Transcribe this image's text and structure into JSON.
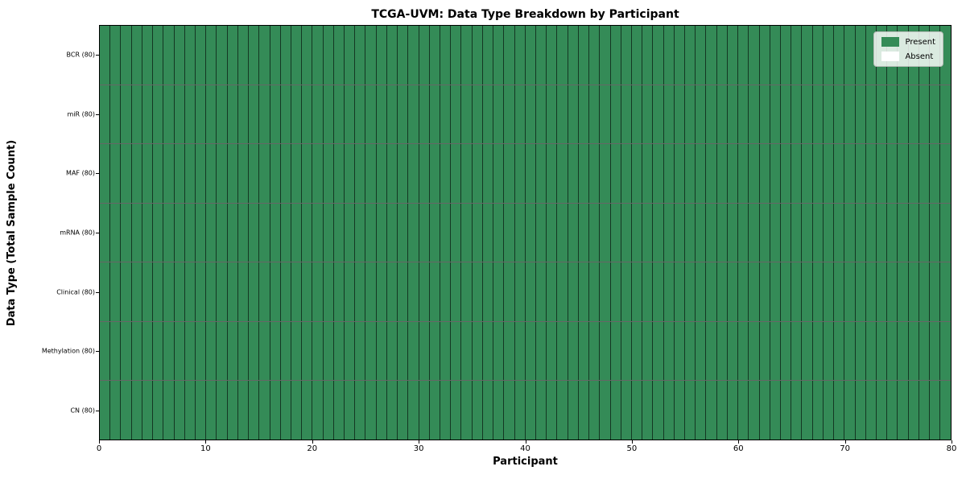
{
  "chart_data": {
    "type": "heatmap",
    "title": "TCGA-UVM: Data Type Breakdown by Participant",
    "xlabel": "Participant",
    "ylabel": "Data Type (Total Sample Count)",
    "xlim": [
      0,
      80
    ],
    "x_ticks": [
      0,
      10,
      20,
      30,
      40,
      50,
      60,
      70,
      80
    ],
    "n_participants": 80,
    "rows": [
      {
        "label": "BCR (80)",
        "data_type": "BCR",
        "total_samples": 80,
        "present": 80,
        "absent": 0
      },
      {
        "label": "miR (80)",
        "data_type": "miR",
        "total_samples": 80,
        "present": 80,
        "absent": 0
      },
      {
        "label": "MAF (80)",
        "data_type": "MAF",
        "total_samples": 80,
        "present": 80,
        "absent": 0
      },
      {
        "label": "mRNA (80)",
        "data_type": "mRNA",
        "total_samples": 80,
        "present": 80,
        "absent": 0
      },
      {
        "label": "Clinical (80)",
        "data_type": "Clinical",
        "total_samples": 80,
        "present": 80,
        "absent": 0
      },
      {
        "label": "Methylation (80)",
        "data_type": "Methylation",
        "total_samples": 80,
        "present": 80,
        "absent": 0
      },
      {
        "label": "CN (80)",
        "data_type": "CN",
        "total_samples": 80,
        "present": 80,
        "absent": 0
      }
    ],
    "legend": [
      {
        "label": "Present",
        "color": "#348b57"
      },
      {
        "label": "Absent",
        "color": "#ffffff"
      }
    ],
    "colors": {
      "present": "#348b57",
      "absent": "#ffffff"
    },
    "legend_position": "upper right",
    "grid": "per-cell borders"
  }
}
